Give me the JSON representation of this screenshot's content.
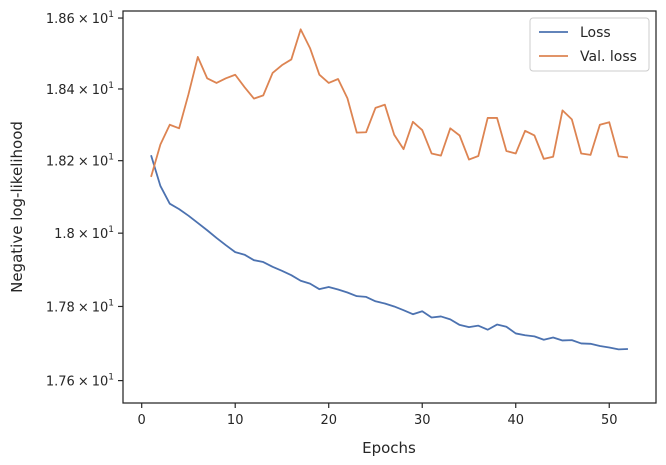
{
  "chart_data": {
    "type": "line",
    "xlabel": "Epochs",
    "ylabel": "Negative log-likelihood",
    "xlim": [
      -2,
      55
    ],
    "ylim": [
      17.54,
      18.62
    ],
    "yscale": "log",
    "xticks": [
      0,
      10,
      20,
      30,
      40,
      50
    ],
    "yticks": [
      {
        "value": 17.6,
        "mantissa": "1.76",
        "exponent": "1"
      },
      {
        "value": 17.8,
        "mantissa": "1.78",
        "exponent": "1"
      },
      {
        "value": 18.0,
        "mantissa": "1.8",
        "exponent": "1"
      },
      {
        "value": 18.2,
        "mantissa": "1.82",
        "exponent": "1"
      },
      {
        "value": 18.4,
        "mantissa": "1.84",
        "exponent": "1"
      },
      {
        "value": 18.6,
        "mantissa": "1.86",
        "exponent": "1"
      }
    ],
    "tick_times": "×",
    "tick_base": "10",
    "grid": false,
    "legend_position": "upper-right",
    "x": [
      1,
      2,
      3,
      4,
      5,
      6,
      7,
      8,
      9,
      10,
      11,
      12,
      13,
      14,
      15,
      16,
      17,
      18,
      19,
      20,
      21,
      22,
      23,
      24,
      25,
      26,
      27,
      28,
      29,
      30,
      31,
      32,
      33,
      34,
      35,
      36,
      37,
      38,
      39,
      40,
      41,
      42,
      43,
      44,
      45,
      46,
      47,
      48,
      49,
      50,
      51,
      52
    ],
    "series": [
      {
        "name": "Loss",
        "color": "#4c72b0",
        "values": [
          18.215,
          18.13,
          18.081,
          18.066,
          18.048,
          18.028,
          18.008,
          17.987,
          17.967,
          17.948,
          17.941,
          17.926,
          17.921,
          17.908,
          17.897,
          17.885,
          17.87,
          17.862,
          17.847,
          17.853,
          17.846,
          17.838,
          17.828,
          17.826,
          17.814,
          17.808,
          17.8,
          17.79,
          17.779,
          17.787,
          17.77,
          17.773,
          17.765,
          17.75,
          17.744,
          17.748,
          17.737,
          17.751,
          17.745,
          17.727,
          17.722,
          17.719,
          17.71,
          17.716,
          17.708,
          17.709,
          17.7,
          17.699,
          17.693,
          17.689,
          17.684,
          17.685
        ]
      },
      {
        "name": "Val. loss",
        "color": "#dd8452",
        "values": [
          18.155,
          18.245,
          18.3,
          18.29,
          18.385,
          18.49,
          18.43,
          18.417,
          18.43,
          18.44,
          18.405,
          18.373,
          18.382,
          18.445,
          18.467,
          18.483,
          18.568,
          18.515,
          18.44,
          18.417,
          18.428,
          18.374,
          18.278,
          18.279,
          18.347,
          18.356,
          18.272,
          18.232,
          18.308,
          18.285,
          18.22,
          18.214,
          18.29,
          18.27,
          18.203,
          18.213,
          18.319,
          18.319,
          18.227,
          18.22,
          18.283,
          18.27,
          18.205,
          18.211,
          18.34,
          18.315,
          18.22,
          18.216,
          18.3,
          18.307,
          18.212,
          18.209
        ]
      }
    ]
  }
}
